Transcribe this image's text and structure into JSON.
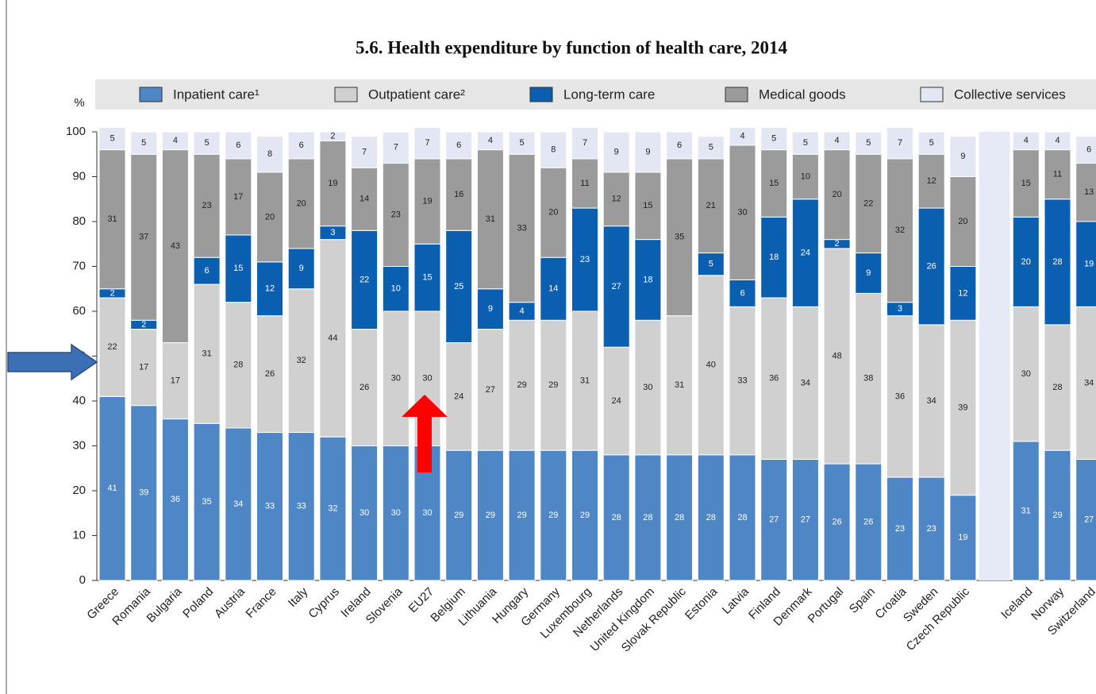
{
  "chart_data": {
    "type": "stacked_bar",
    "title": "5.6. Health expenditure by function of health care, 2014",
    "y_label": "%",
    "categories": [
      "Greece",
      "Romania",
      "Bulgaria",
      "Poland",
      "Austria",
      "France",
      "Italy",
      "Cyprus",
      "Ireland",
      "Slovenia",
      "EU27",
      "Belgium",
      "Lithuania",
      "Hungary",
      "Germany",
      "Luxembourg",
      "Netherlands",
      "United Kingdom",
      "Slovak Republic",
      "Estonia",
      "Latvia",
      "Finland",
      "Denmark",
      "Portugal",
      "Spain",
      "Croatia",
      "Sweden",
      "Czech Republic",
      null,
      "Iceland",
      "Norway",
      "Switzerland"
    ],
    "series": [
      {
        "name": "Inpatient care¹",
        "color": "#4f86c6",
        "values": [
          41,
          39,
          36,
          35,
          34,
          33,
          33,
          32,
          30,
          30,
          30,
          29,
          29,
          29,
          29,
          29,
          28,
          28,
          28,
          28,
          28,
          27,
          27,
          26,
          26,
          23,
          23,
          19,
          null,
          31,
          29,
          27
        ]
      },
      {
        "name": "Outpatient care²",
        "color": "#d0d0d0",
        "values": [
          22,
          17,
          17,
          31,
          28,
          26,
          32,
          44,
          26,
          30,
          30,
          24,
          27,
          29,
          29,
          31,
          24,
          30,
          31,
          40,
          33,
          36,
          34,
          48,
          38,
          36,
          34,
          39,
          null,
          30,
          28,
          34
        ]
      },
      {
        "name": "Long-term care",
        "color": "#0b5fb0",
        "values": [
          2,
          2,
          null,
          6,
          15,
          12,
          9,
          3,
          22,
          10,
          15,
          25,
          9,
          4,
          14,
          23,
          27,
          18,
          null,
          5,
          6,
          18,
          24,
          2,
          9,
          3,
          26,
          12,
          null,
          20,
          28,
          19
        ]
      },
      {
        "name": "Medical goods",
        "color": "#9b9b9b",
        "values": [
          31,
          37,
          43,
          23,
          17,
          20,
          20,
          19,
          14,
          23,
          19,
          16,
          31,
          33,
          20,
          11,
          12,
          15,
          35,
          21,
          30,
          15,
          10,
          20,
          22,
          32,
          12,
          20,
          null,
          15,
          11,
          13
        ]
      },
      {
        "name": "Collective services",
        "color": "#e3e7f3",
        "values": [
          5,
          5,
          4,
          5,
          6,
          8,
          6,
          2,
          7,
          7,
          7,
          6,
          4,
          5,
          8,
          7,
          9,
          9,
          6,
          5,
          4,
          5,
          5,
          4,
          5,
          7,
          5,
          9,
          null,
          4,
          4,
          6
        ]
      }
    ],
    "ylim": [
      0,
      100
    ],
    "yticks": [
      0,
      10,
      20,
      30,
      40,
      50,
      60,
      70,
      80,
      90,
      100
    ]
  }
}
